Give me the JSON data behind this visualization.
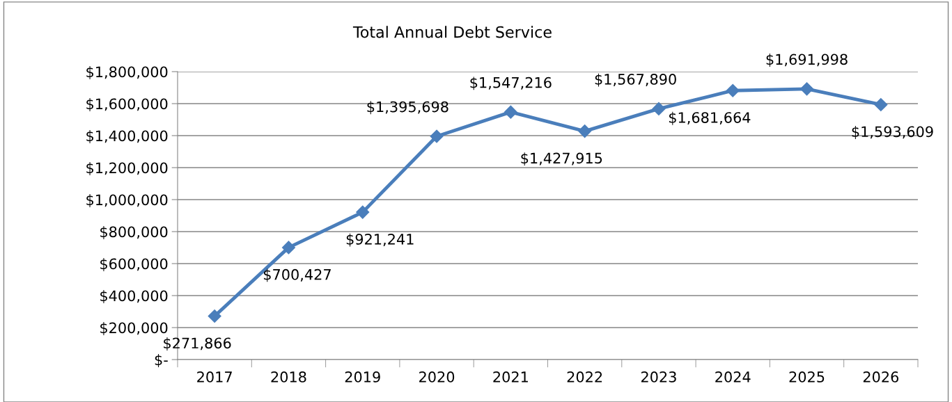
{
  "chart_data": {
    "type": "line",
    "title": "Total Annual Debt Service",
    "categories": [
      "2017",
      "2018",
      "2019",
      "2020",
      "2021",
      "2022",
      "2023",
      "2024",
      "2025",
      "2026"
    ],
    "series": [
      {
        "color": "#4a7ebb",
        "values": [
          271866,
          700427,
          921241,
          1395698,
          1547216,
          1427915,
          1567890,
          1681664,
          1691998,
          1593609
        ]
      }
    ],
    "value_labels": [
      "$271,866",
      "$700,427",
      "$921,241",
      "$1,395,698",
      "$1,547,216",
      "$1,427,915",
      "$1,567,890",
      "$1,681,664",
      "$1,691,998",
      "$1,593,609"
    ],
    "ylim": [
      0,
      1800000
    ],
    "yticks": [
      {
        "value": 0,
        "label": "$-"
      },
      {
        "value": 200000,
        "label": "$200,000"
      },
      {
        "value": 400000,
        "label": "$400,000"
      },
      {
        "value": 600000,
        "label": "$600,000"
      },
      {
        "value": 800000,
        "label": "$800,000"
      },
      {
        "value": 1000000,
        "label": "$1,000,000"
      },
      {
        "value": 1200000,
        "label": "$1,200,000"
      },
      {
        "value": 1400000,
        "label": "$1,400,000"
      },
      {
        "value": 1600000,
        "label": "$1,600,000"
      },
      {
        "value": 1800000,
        "label": "$1,800,000"
      }
    ],
    "grid": "y",
    "legend": false,
    "marker": "diamond",
    "line_style": "solid"
  }
}
